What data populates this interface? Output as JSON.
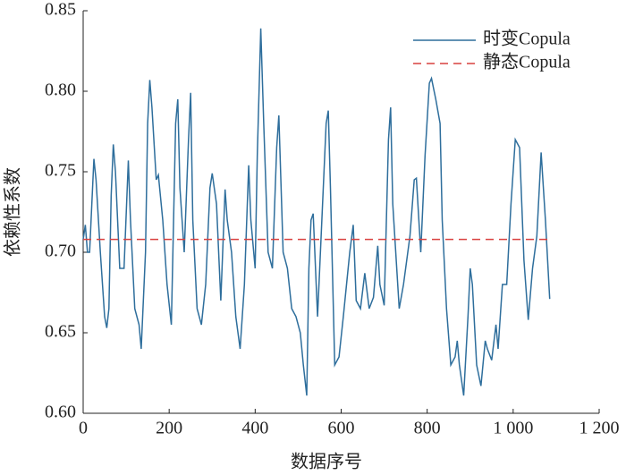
{
  "chart_data": {
    "type": "line",
    "xlabel": "数据序号",
    "ylabel": "依赖性系数",
    "xlim": [
      0,
      1200
    ],
    "xticks": [
      0,
      200,
      400,
      600,
      800,
      {
        "value": 1000,
        "label": "1 000"
      },
      {
        "value": 1200,
        "label": "1 200"
      }
    ],
    "ylim": [
      0.6,
      0.85
    ],
    "yticks": [
      {
        "value": 0.6,
        "label": "0.60"
      },
      0.65,
      {
        "value": 0.7,
        "label": "0.70"
      },
      0.75,
      {
        "value": 0.8,
        "label": "0.80"
      },
      0.85
    ],
    "legend": "upper right",
    "series": [
      {
        "name": "时变Copula",
        "color": "#2e6e9c",
        "dash": false,
        "x": [
          0,
          5,
          10,
          15,
          25,
          30,
          40,
          50,
          55,
          60,
          65,
          70,
          75,
          85,
          95,
          105,
          110,
          120,
          130,
          135,
          145,
          150,
          155,
          160,
          170,
          175,
          185,
          195,
          205,
          215,
          220,
          225,
          235,
          245,
          250,
          255,
          265,
          275,
          285,
          295,
          300,
          310,
          320,
          330,
          335,
          345,
          355,
          365,
          375,
          385,
          390,
          400,
          405,
          413,
          420,
          430,
          440,
          450,
          455,
          465,
          475,
          485,
          495,
          505,
          512,
          520,
          525,
          530,
          535,
          545,
          555,
          565,
          570,
          575,
          585,
          595,
          605,
          620,
          628,
          635,
          645,
          655,
          665,
          675,
          685,
          690,
          700,
          710,
          715,
          720,
          735,
          745,
          760,
          770,
          775,
          785,
          795,
          805,
          810,
          820,
          830,
          835,
          845,
          855,
          865,
          870,
          875,
          885,
          895,
          900,
          905,
          915,
          925,
          935,
          940,
          950,
          960,
          965,
          975,
          985,
          995,
          1005,
          1015,
          1025,
          1035,
          1045,
          1055,
          1065,
          1075,
          1085
        ],
        "values": [
          0.708,
          0.717,
          0.7,
          0.7,
          0.758,
          0.745,
          0.7,
          0.66,
          0.653,
          0.665,
          0.735,
          0.767,
          0.75,
          0.69,
          0.69,
          0.757,
          0.72,
          0.665,
          0.655,
          0.64,
          0.7,
          0.78,
          0.807,
          0.79,
          0.745,
          0.748,
          0.72,
          0.68,
          0.655,
          0.78,
          0.795,
          0.74,
          0.7,
          0.77,
          0.799,
          0.72,
          0.665,
          0.655,
          0.68,
          0.74,
          0.749,
          0.73,
          0.67,
          0.739,
          0.72,
          0.7,
          0.66,
          0.64,
          0.68,
          0.754,
          0.72,
          0.69,
          0.76,
          0.839,
          0.78,
          0.7,
          0.69,
          0.765,
          0.785,
          0.7,
          0.69,
          0.665,
          0.66,
          0.65,
          0.63,
          0.611,
          0.69,
          0.72,
          0.724,
          0.66,
          0.72,
          0.78,
          0.788,
          0.74,
          0.63,
          0.635,
          0.66,
          0.7,
          0.717,
          0.67,
          0.665,
          0.687,
          0.665,
          0.672,
          0.704,
          0.68,
          0.667,
          0.77,
          0.79,
          0.73,
          0.665,
          0.68,
          0.71,
          0.745,
          0.746,
          0.7,
          0.76,
          0.805,
          0.808,
          0.795,
          0.78,
          0.72,
          0.665,
          0.63,
          0.635,
          0.645,
          0.63,
          0.611,
          0.66,
          0.69,
          0.68,
          0.63,
          0.617,
          0.645,
          0.64,
          0.633,
          0.655,
          0.64,
          0.68,
          0.68,
          0.73,
          0.77,
          0.765,
          0.695,
          0.658,
          0.69,
          0.71,
          0.762,
          0.72,
          0.671
        ]
      },
      {
        "name": "静态Copula",
        "color": "#d9403f",
        "dash": true,
        "x": [
          0,
          1090
        ],
        "values": [
          0.708,
          0.708
        ]
      }
    ]
  }
}
